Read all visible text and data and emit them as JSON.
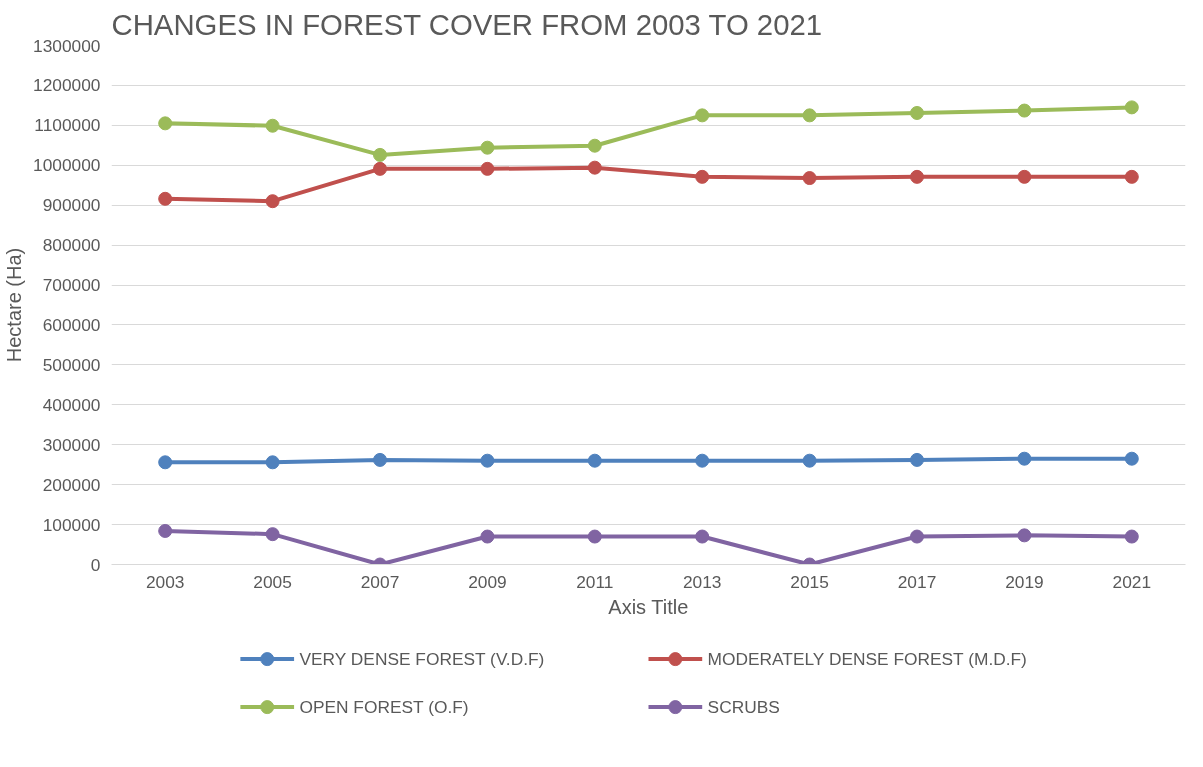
{
  "chart_data": {
    "type": "line",
    "title": "CHANGES IN FOREST COVER FROM 2003 TO 2021",
    "xlabel": "Axis Title",
    "ylabel": "Hectare (Ha)",
    "categories": [
      "2003",
      "2005",
      "2007",
      "2009",
      "2011",
      "2013",
      "2015",
      "2017",
      "2019",
      "2021"
    ],
    "series": [
      {
        "name": "VERY DENSE FOREST (V.D.F)",
        "color": "#4f81bd",
        "values": [
          256000,
          256000,
          262000,
          260000,
          260000,
          260000,
          260000,
          262000,
          265000,
          265000
        ]
      },
      {
        "name": "MODERATELY DENSE FOREST (M.D.F)",
        "color": "#c0504d",
        "values": [
          916000,
          910000,
          991000,
          991000,
          994000,
          971000,
          968000,
          971000,
          971000,
          971000
        ]
      },
      {
        "name": "OPEN FOREST (O.F)",
        "color": "#9bbb59",
        "values": [
          1105000,
          1099000,
          1026000,
          1044000,
          1049000,
          1125000,
          1125000,
          1131000,
          1137000,
          1145000
        ]
      },
      {
        "name": "SCRUBS",
        "color": "#8064a2",
        "values": [
          84000,
          76000,
          0,
          70000,
          70000,
          70000,
          0,
          70000,
          73000,
          70000
        ]
      }
    ],
    "ylim": [
      0,
      1300000
    ],
    "yticks": [
      0,
      100000,
      200000,
      300000,
      400000,
      500000,
      600000,
      700000,
      800000,
      900000,
      1000000,
      1100000,
      1200000,
      1300000
    ],
    "grid": "y",
    "legend": "bottom",
    "marker": "circle",
    "line_style": "solid"
  }
}
